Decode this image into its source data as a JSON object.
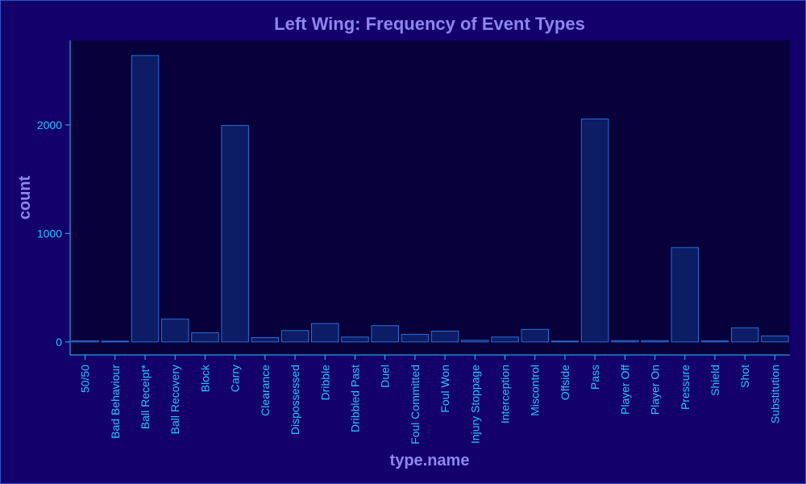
{
  "chart_data": {
    "type": "bar",
    "title": "Left Wing: Frequency of Event Types",
    "xlabel": "type.name",
    "ylabel": "count",
    "categories": [
      "50/50",
      "Bad Behaviour",
      "Ball Receipt*",
      "Ball Recovery",
      "Block",
      "Carry",
      "Clearance",
      "Dispossessed",
      "Dribble",
      "Dribbled Past",
      "Duel",
      "Foul Committed",
      "Foul Won",
      "Injury Stoppage",
      "Interception",
      "Miscontrol",
      "Offside",
      "Pass",
      "Player Off",
      "Player On",
      "Pressure",
      "Shield",
      "Shot",
      "Substitution"
    ],
    "values": [
      10,
      3,
      2640,
      210,
      85,
      1995,
      40,
      105,
      170,
      45,
      150,
      70,
      100,
      15,
      45,
      115,
      2,
      2055,
      12,
      12,
      870,
      10,
      130,
      55
    ],
    "ylim": [
      -120,
      2780
    ],
    "yticks": [
      0,
      1000,
      2000
    ],
    "grid": false,
    "colors": {
      "background": "#13006b",
      "plot_background": "#07003a",
      "bar_fill": "#0c1d66",
      "bar_stroke": "#2a6cd6",
      "axis": "#2ec2ff",
      "title": "#8f85f2",
      "tick_text": "#2ec2ff"
    }
  }
}
